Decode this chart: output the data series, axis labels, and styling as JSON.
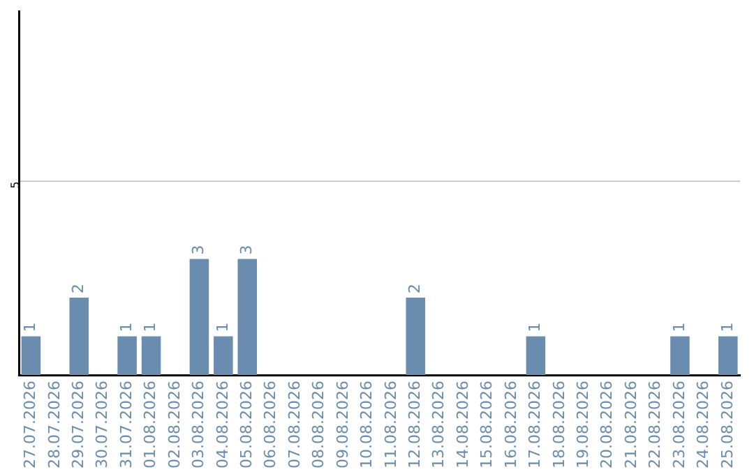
{
  "chart_data": {
    "type": "bar",
    "categories": [
      "27.07.2026",
      "28.07.2026",
      "29.07.2026",
      "30.07.2026",
      "31.07.2026",
      "01.08.2026",
      "02.08.2026",
      "03.08.2026",
      "04.08.2026",
      "05.08.2026",
      "06.08.2026",
      "07.08.2026",
      "08.08.2026",
      "09.08.2026",
      "10.08.2026",
      "11.08.2026",
      "12.08.2026",
      "13.08.2026",
      "14.08.2026",
      "15.08.2026",
      "16.08.2026",
      "17.08.2026",
      "18.08.2026",
      "19.08.2026",
      "20.08.2026",
      "21.08.2026",
      "22.08.2026",
      "23.08.2026",
      "24.08.2026",
      "25.08.2026"
    ],
    "values": [
      1,
      0,
      2,
      0,
      1,
      1,
      0,
      3,
      1,
      3,
      0,
      0,
      0,
      0,
      0,
      0,
      2,
      0,
      0,
      0,
      0,
      1,
      0,
      0,
      0,
      0,
      0,
      1,
      0,
      1
    ],
    "value_labels": [
      "1",
      null,
      "2",
      null,
      "1",
      "1",
      null,
      "3",
      "1",
      "3",
      null,
      null,
      null,
      null,
      null,
      null,
      "2",
      null,
      null,
      null,
      null,
      "1",
      null,
      null,
      null,
      null,
      null,
      "1",
      null,
      "1"
    ],
    "color": "#6a8caf",
    "ylim": [
      0,
      9.4
    ],
    "yticks": [
      5
    ],
    "grid": "y",
    "legend": false
  }
}
